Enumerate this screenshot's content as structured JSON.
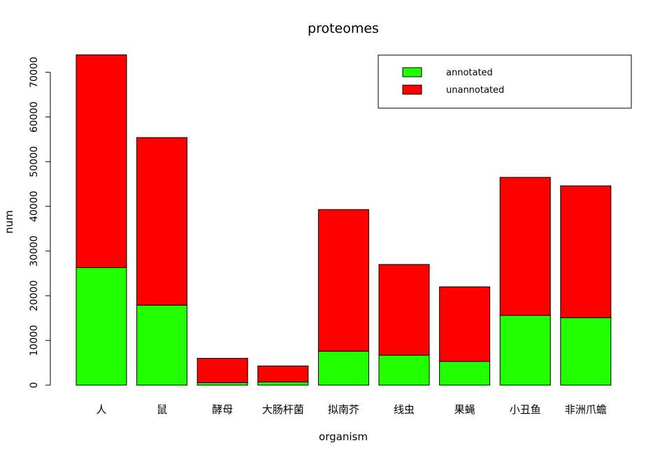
{
  "chart_data": {
    "type": "bar",
    "stacked": true,
    "title": "proteomes",
    "xlabel": "organism",
    "ylabel": "num",
    "ylim": [
      0,
      74000
    ],
    "yticks": [
      0,
      10000,
      20000,
      30000,
      40000,
      50000,
      60000,
      70000
    ],
    "grid": false,
    "legend_position": "top-right",
    "categories": [
      "人",
      "鼠",
      "酵母",
      "大肠杆菌",
      "拟南芥",
      "线虫",
      "果蝇",
      "小丑鱼",
      "非洲爪蟾"
    ],
    "series": [
      {
        "name": "annotated",
        "color": "#22ff00",
        "values": [
          26300,
          17900,
          550,
          700,
          7600,
          6700,
          5300,
          15600,
          15100
        ]
      },
      {
        "name": "unannotated",
        "color": "#ff0000",
        "values": [
          47600,
          37500,
          5450,
          3600,
          31700,
          20300,
          16700,
          30900,
          29500
        ]
      }
    ]
  }
}
